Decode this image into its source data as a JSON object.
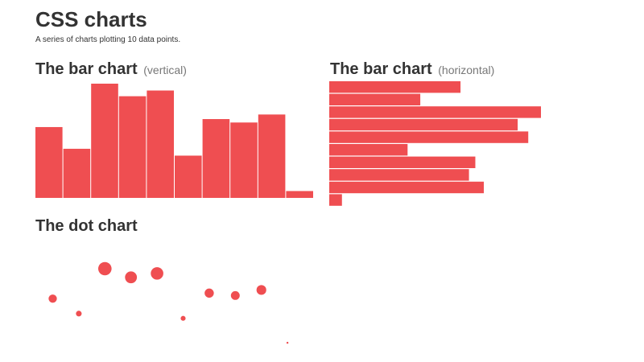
{
  "header": {
    "title": "CSS charts",
    "subtitle": "A series of charts plotting 10 data points."
  },
  "charts": {
    "vertical": {
      "title": "The bar chart",
      "subtitle": "(vertical)"
    },
    "horizontal": {
      "title": "The bar chart",
      "subtitle": "(horizontal)"
    },
    "dot": {
      "title": "The dot chart"
    }
  },
  "colors": {
    "bar": "#ef4e51",
    "dot": "#ef4e51",
    "text": "#333333",
    "muted": "#777777"
  },
  "chart_data": [
    {
      "type": "bar",
      "orientation": "vertical",
      "title": "The bar chart",
      "subtitle": "(vertical)",
      "values": [
        62,
        43,
        100,
        89,
        94,
        37,
        69,
        66,
        73,
        6
      ],
      "ylim": [
        0,
        100
      ],
      "grid": false,
      "legend": "none"
    },
    {
      "type": "bar",
      "orientation": "horizontal",
      "title": "The bar chart",
      "subtitle": "(horizontal)",
      "values": [
        62,
        43,
        100,
        89,
        94,
        37,
        69,
        66,
        73,
        6
      ],
      "xlim": [
        0,
        100
      ],
      "grid": false,
      "legend": "none"
    },
    {
      "type": "scatter",
      "title": "The dot chart",
      "values": [
        62,
        43,
        100,
        89,
        94,
        37,
        69,
        66,
        73,
        6
      ],
      "ylim": [
        0,
        100
      ],
      "encoding": "position and size",
      "grid": false,
      "legend": "none"
    }
  ]
}
